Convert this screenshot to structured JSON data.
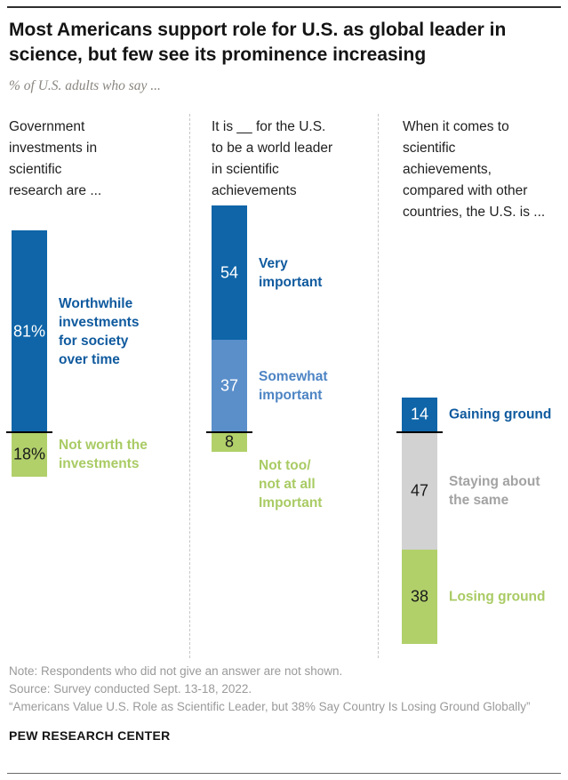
{
  "header": {
    "title": "Most Americans support role for U.S. as global leader in science, but few see its prominence increasing",
    "subtitle": "% of U.S. adults who say ..."
  },
  "colors": {
    "dark_blue": "#0f65a8",
    "light_blue": "#5a8fca",
    "green": "#b1d06a",
    "gray": "#d2d2d2",
    "axis_line": "#000000",
    "footer_text": "#9a9a9a"
  },
  "chart_data": {
    "type": "bar",
    "subtype": "stacked-diverging-column",
    "unit": "% of U.S. adults",
    "title": "Most Americans support role for U.S. as global leader in science, but few see its prominence increasing",
    "panels": [
      {
        "question": "Government\ninvestments in\nscientific\nresearch are ...",
        "segments": [
          {
            "name": "worthwhile-investments",
            "label": "Worthwhile\ninvestments\nfor society\nover time",
            "value": 81,
            "display": "81%",
            "above_axis": true,
            "bar_color": "#0f65a8",
            "value_color": "#ffffff",
            "label_color": "#0f5a9e"
          },
          {
            "name": "not-worth-investments",
            "label": "Not worth the\ninvestments",
            "value": 18,
            "display": "18%",
            "above_axis": false,
            "bar_color": "#b1d06a",
            "value_color": "#1a1a1a",
            "label_color": "#a9cb64"
          }
        ]
      },
      {
        "question": "It is __ for the U.S.\nto be a world leader\nin scientific\nachievements",
        "segments": [
          {
            "name": "very-important",
            "label": "Very\nimportant",
            "value": 54,
            "display": "54",
            "above_axis": true,
            "bar_color": "#0f65a8",
            "value_color": "#ffffff",
            "label_color": "#0f5a9e"
          },
          {
            "name": "somewhat-important",
            "label": "Somewhat\nimportant",
            "value": 37,
            "display": "37",
            "above_axis": true,
            "bar_color": "#5a8fca",
            "value_color": "#ffffff",
            "label_color": "#4d84c4"
          },
          {
            "name": "not-important",
            "label": "Not too/\nnot at all\nImportant",
            "value": 8,
            "display": "8",
            "above_axis": false,
            "bar_color": "#b1d06a",
            "value_color": "#1a1a1a",
            "label_color": "#a9cb64"
          }
        ]
      },
      {
        "question": "When it comes to\nscientific\nachievements,\ncompared with other\ncountries, the U.S. is ...",
        "segments": [
          {
            "name": "gaining-ground",
            "label": "Gaining ground",
            "value": 14,
            "display": "14",
            "above_axis": true,
            "bar_color": "#0f65a8",
            "value_color": "#ffffff",
            "label_color": "#0f5a9e"
          },
          {
            "name": "staying-the-same",
            "label": "Staying about\nthe same",
            "value": 47,
            "display": "47",
            "above_axis": false,
            "bar_color": "#d2d2d2",
            "value_color": "#1a1a1a",
            "label_color": "#a3a3a3"
          },
          {
            "name": "losing-ground",
            "label": "Losing ground",
            "value": 38,
            "display": "38",
            "above_axis": false,
            "bar_color": "#b1d06a",
            "value_color": "#1a1a1a",
            "label_color": "#a9cb64"
          }
        ]
      }
    ]
  },
  "footer": {
    "note": "Note: Respondents who did not give an answer are not shown.",
    "source": "Source: Survey conducted Sept. 13-18, 2022.",
    "report": "“Americans Value U.S. Role as Scientific Leader, but 38% Say Country Is Losing Ground Globally”",
    "brand": "PEW RESEARCH CENTER"
  }
}
